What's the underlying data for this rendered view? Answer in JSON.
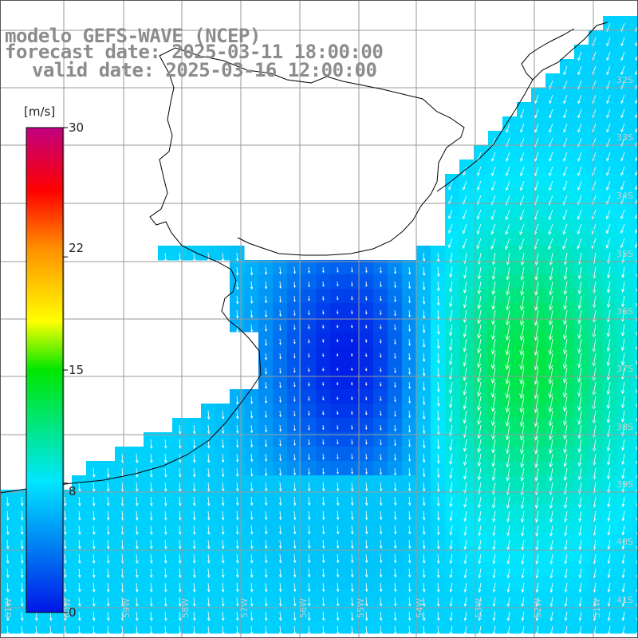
{
  "titles": {
    "line1": "modelo GEFS-WAVE (NCEP)",
    "line2": "forecast date: 2025-03-11 18:00:00",
    "line3": "valid date: 2025-03-16 12:00:00"
  },
  "colorbar": {
    "unit": "[m/s]",
    "min": 0,
    "max": 30,
    "tick_labels": [
      "30",
      "22",
      "15",
      "8",
      "0"
    ],
    "tick_values": [
      30,
      22,
      15,
      8,
      0
    ]
  },
  "lat_labels": [
    "32S",
    "33S",
    "34S",
    "35S",
    "36S",
    "37S",
    "38S",
    "39S",
    "40S",
    "41S"
  ],
  "lon_labels": [
    "61W",
    "60W",
    "59W",
    "58W",
    "57W",
    "56W",
    "55W",
    "54W",
    "53W",
    "52W",
    "51W"
  ],
  "colors": {
    "land": "#ffffff",
    "coast": "#000000",
    "grid": "#9a9a9a",
    "calm": "#0016e6",
    "medium": "#00e6ff",
    "strong": "#00e640",
    "arrow": "#ffffff",
    "title": "#8c8c8c"
  }
}
